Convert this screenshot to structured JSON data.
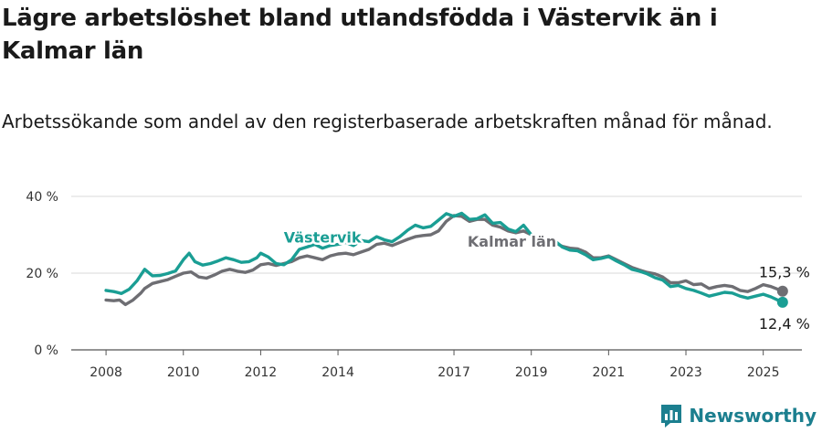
{
  "header": {
    "title": "Lägre arbetslöshet bland utlandsfödda i Västervik än i Kalmar län",
    "subtitle": "Arbetssökande som andel av den registerbaserade arbetskraften månad för månad."
  },
  "brand": {
    "name": "Newsworthy",
    "icon": "newsworthy-logo-icon",
    "color": "#1c7f8f"
  },
  "chart_data": {
    "type": "line",
    "title": "Lägre arbetslöshet bland utlandsfödda i Västervik än i Kalmar län",
    "subtitle": "Arbetssökande som andel av den registerbaserade arbetskraften månad för månad.",
    "xlabel": "",
    "ylabel": "",
    "x_ticks": [
      "2008",
      "2010",
      "2012",
      "2014",
      "2017",
      "2019",
      "2021",
      "2023",
      "2025"
    ],
    "x_tick_positions": [
      2008,
      2010,
      2012,
      2014,
      2017,
      2019,
      2021,
      2023,
      2025
    ],
    "xlim": [
      2007.1,
      2026.0
    ],
    "y_ticks": [
      "0 %",
      "20 %",
      "40 %"
    ],
    "y_tick_values": [
      0,
      20,
      40
    ],
    "ylim": [
      0,
      40
    ],
    "grid": true,
    "series": [
      {
        "name": "Västervik",
        "color": "#1a9e94",
        "end_label": "12,4 %",
        "points": [
          [
            2008.0,
            15.5
          ],
          [
            2008.2,
            15.2
          ],
          [
            2008.4,
            14.7
          ],
          [
            2008.6,
            15.8
          ],
          [
            2008.8,
            18.0
          ],
          [
            2008.9,
            19.5
          ],
          [
            2009.0,
            21.0
          ],
          [
            2009.2,
            19.3
          ],
          [
            2009.4,
            19.4
          ],
          [
            2009.6,
            19.9
          ],
          [
            2009.8,
            20.6
          ],
          [
            2010.0,
            23.5
          ],
          [
            2010.15,
            25.2
          ],
          [
            2010.3,
            23.0
          ],
          [
            2010.5,
            22.1
          ],
          [
            2010.7,
            22.5
          ],
          [
            2010.9,
            23.2
          ],
          [
            2011.1,
            24.0
          ],
          [
            2011.3,
            23.5
          ],
          [
            2011.5,
            22.8
          ],
          [
            2011.7,
            23.0
          ],
          [
            2011.9,
            24.0
          ],
          [
            2012.0,
            25.2
          ],
          [
            2012.2,
            24.2
          ],
          [
            2012.4,
            22.5
          ],
          [
            2012.6,
            22.2
          ],
          [
            2012.8,
            23.5
          ],
          [
            2013.0,
            26.2
          ],
          [
            2013.2,
            26.8
          ],
          [
            2013.4,
            27.5
          ],
          [
            2013.6,
            26.5
          ],
          [
            2013.8,
            27.2
          ],
          [
            2014.0,
            27.5
          ],
          [
            2014.2,
            28.0
          ],
          [
            2014.4,
            27.2
          ],
          [
            2014.6,
            28.5
          ],
          [
            2014.8,
            28.2
          ],
          [
            2015.0,
            29.5
          ],
          [
            2015.2,
            28.7
          ],
          [
            2015.4,
            28.2
          ],
          [
            2015.6,
            29.5
          ],
          [
            2015.8,
            31.2
          ],
          [
            2016.0,
            32.5
          ],
          [
            2016.2,
            31.8
          ],
          [
            2016.4,
            32.2
          ],
          [
            2016.6,
            33.8
          ],
          [
            2016.8,
            35.5
          ],
          [
            2017.0,
            34.8
          ],
          [
            2017.2,
            35.6
          ],
          [
            2017.4,
            34.0
          ],
          [
            2017.6,
            34.2
          ],
          [
            2017.8,
            35.2
          ],
          [
            2018.0,
            33.0
          ],
          [
            2018.2,
            33.2
          ],
          [
            2018.4,
            31.5
          ],
          [
            2018.6,
            30.8
          ],
          [
            2018.8,
            32.5
          ],
          [
            2019.0,
            30.0
          ],
          [
            2019.2,
            28.5
          ],
          [
            2019.4,
            28.0
          ],
          [
            2019.6,
            28.5
          ],
          [
            2019.8,
            26.8
          ],
          [
            2020.0,
            26.0
          ],
          [
            2020.2,
            25.8
          ],
          [
            2020.4,
            24.8
          ],
          [
            2020.6,
            23.5
          ],
          [
            2020.8,
            23.8
          ],
          [
            2021.0,
            24.3
          ],
          [
            2021.2,
            23.2
          ],
          [
            2021.4,
            22.2
          ],
          [
            2021.6,
            21.0
          ],
          [
            2021.8,
            20.5
          ],
          [
            2022.0,
            19.8
          ],
          [
            2022.2,
            18.8
          ],
          [
            2022.4,
            18.2
          ],
          [
            2022.6,
            16.5
          ],
          [
            2022.8,
            16.8
          ],
          [
            2023.0,
            16.0
          ],
          [
            2023.2,
            15.5
          ],
          [
            2023.4,
            14.8
          ],
          [
            2023.6,
            14.0
          ],
          [
            2023.8,
            14.5
          ],
          [
            2024.0,
            15.0
          ],
          [
            2024.2,
            14.8
          ],
          [
            2024.4,
            14.0
          ],
          [
            2024.6,
            13.5
          ],
          [
            2024.8,
            14.0
          ],
          [
            2025.0,
            14.5
          ],
          [
            2025.2,
            13.8
          ],
          [
            2025.5,
            12.4
          ]
        ]
      },
      {
        "name": "Kalmar län",
        "color": "#6e6e73",
        "end_label": "15,3 %",
        "points": [
          [
            2008.0,
            13.0
          ],
          [
            2008.2,
            12.8
          ],
          [
            2008.35,
            13.0
          ],
          [
            2008.5,
            11.8
          ],
          [
            2008.7,
            13.0
          ],
          [
            2008.9,
            14.8
          ],
          [
            2009.0,
            16.0
          ],
          [
            2009.2,
            17.3
          ],
          [
            2009.4,
            17.8
          ],
          [
            2009.6,
            18.3
          ],
          [
            2009.8,
            19.2
          ],
          [
            2010.0,
            20.0
          ],
          [
            2010.2,
            20.3
          ],
          [
            2010.4,
            19.0
          ],
          [
            2010.6,
            18.7
          ],
          [
            2010.8,
            19.5
          ],
          [
            2011.0,
            20.5
          ],
          [
            2011.2,
            21.0
          ],
          [
            2011.4,
            20.5
          ],
          [
            2011.6,
            20.2
          ],
          [
            2011.8,
            20.8
          ],
          [
            2012.0,
            22.2
          ],
          [
            2012.2,
            22.5
          ],
          [
            2012.4,
            22.0
          ],
          [
            2012.6,
            22.5
          ],
          [
            2012.8,
            23.0
          ],
          [
            2013.0,
            24.0
          ],
          [
            2013.2,
            24.5
          ],
          [
            2013.4,
            24.0
          ],
          [
            2013.6,
            23.5
          ],
          [
            2013.8,
            24.5
          ],
          [
            2014.0,
            25.0
          ],
          [
            2014.2,
            25.2
          ],
          [
            2014.4,
            24.8
          ],
          [
            2014.6,
            25.5
          ],
          [
            2014.8,
            26.2
          ],
          [
            2015.0,
            27.5
          ],
          [
            2015.2,
            27.8
          ],
          [
            2015.4,
            27.2
          ],
          [
            2015.6,
            28.0
          ],
          [
            2015.8,
            28.8
          ],
          [
            2016.0,
            29.5
          ],
          [
            2016.2,
            29.8
          ],
          [
            2016.4,
            30.0
          ],
          [
            2016.6,
            31.0
          ],
          [
            2016.8,
            33.5
          ],
          [
            2017.0,
            35.0
          ],
          [
            2017.2,
            34.8
          ],
          [
            2017.4,
            33.5
          ],
          [
            2017.6,
            34.0
          ],
          [
            2017.8,
            34.0
          ],
          [
            2018.0,
            32.5
          ],
          [
            2018.2,
            32.0
          ],
          [
            2018.4,
            31.0
          ],
          [
            2018.6,
            30.5
          ],
          [
            2018.8,
            31.0
          ],
          [
            2019.0,
            30.0
          ],
          [
            2019.2,
            29.0
          ],
          [
            2019.4,
            27.5
          ],
          [
            2019.6,
            28.0
          ],
          [
            2019.8,
            27.0
          ],
          [
            2020.0,
            26.5
          ],
          [
            2020.2,
            26.3
          ],
          [
            2020.4,
            25.5
          ],
          [
            2020.6,
            24.0
          ],
          [
            2020.8,
            24.0
          ],
          [
            2021.0,
            24.5
          ],
          [
            2021.2,
            23.5
          ],
          [
            2021.4,
            22.5
          ],
          [
            2021.6,
            21.5
          ],
          [
            2021.8,
            20.8
          ],
          [
            2022.0,
            20.2
          ],
          [
            2022.2,
            19.8
          ],
          [
            2022.4,
            19.0
          ],
          [
            2022.6,
            17.5
          ],
          [
            2022.8,
            17.5
          ],
          [
            2023.0,
            18.0
          ],
          [
            2023.2,
            17.0
          ],
          [
            2023.4,
            17.2
          ],
          [
            2023.6,
            16.0
          ],
          [
            2023.8,
            16.5
          ],
          [
            2024.0,
            16.8
          ],
          [
            2024.2,
            16.5
          ],
          [
            2024.4,
            15.5
          ],
          [
            2024.6,
            15.2
          ],
          [
            2024.8,
            16.0
          ],
          [
            2025.0,
            17.0
          ],
          [
            2025.2,
            16.5
          ],
          [
            2025.5,
            15.3
          ]
        ]
      }
    ],
    "annotations": [
      {
        "text": "Västervik",
        "series": "Västervik",
        "at": 2013.6
      },
      {
        "text": "Kalmar län",
        "series": "Kalmar län",
        "at": 2018.5
      }
    ]
  }
}
